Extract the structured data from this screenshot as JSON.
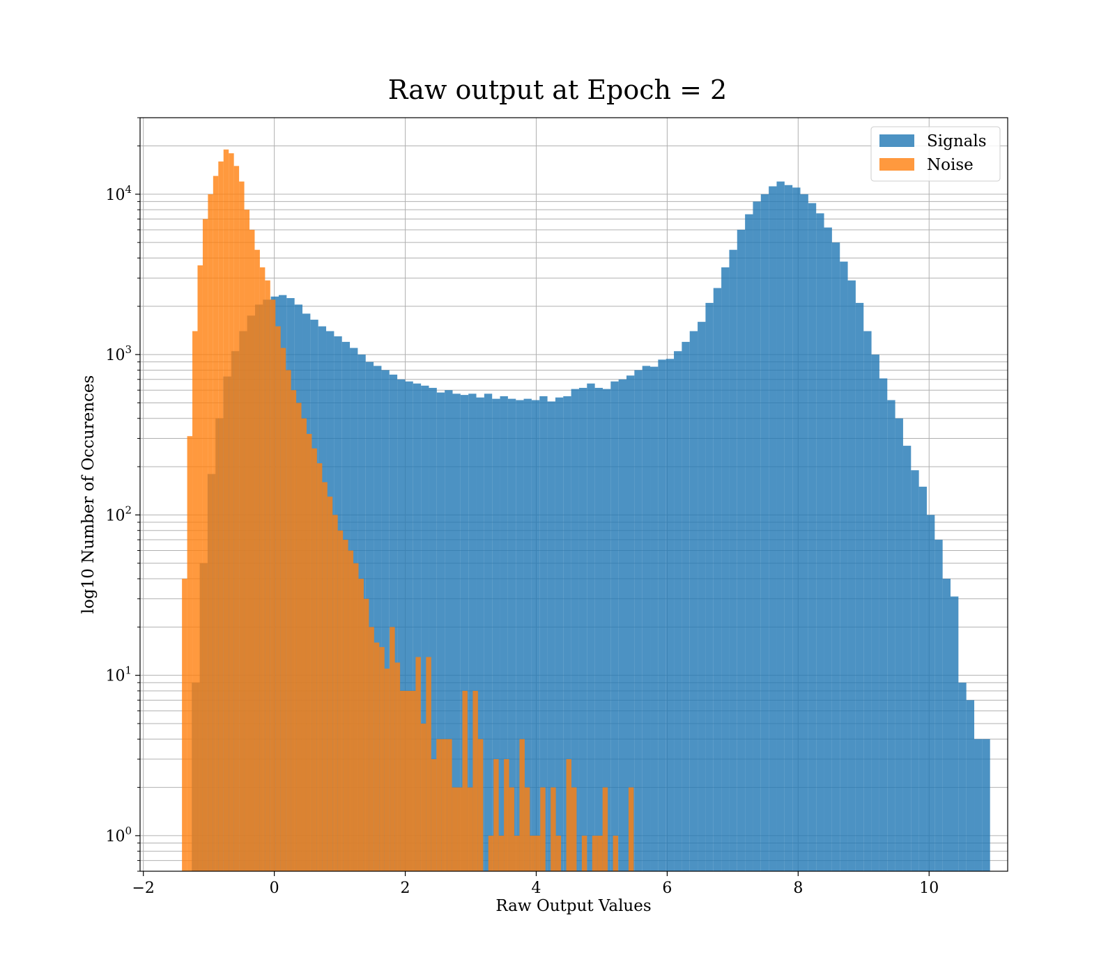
{
  "chart_data": {
    "type": "histogram",
    "title": "Raw output at Epoch = 2",
    "xlabel": "Raw Output Values",
    "ylabel": "log10 Number of Occurences",
    "yscale": "log",
    "xlim": [
      -2.05,
      11.2
    ],
    "ylim": [
      0.6,
      30000
    ],
    "xticks": [
      -2,
      0,
      2,
      4,
      6,
      8,
      10
    ],
    "xtick_labels": [
      "−2",
      "0",
      "2",
      "4",
      "6",
      "8",
      "10"
    ],
    "yticks": [
      {
        "value": 1,
        "base": "10",
        "exp": "0"
      },
      {
        "value": 10,
        "base": "10",
        "exp": "1"
      },
      {
        "value": 100,
        "base": "10",
        "exp": "2"
      },
      {
        "value": 1000,
        "base": "10",
        "exp": "3"
      },
      {
        "value": 10000,
        "base": "10",
        "exp": "4"
      }
    ],
    "grid": true,
    "legend_position": "upper right",
    "series": [
      {
        "name": "Signals",
        "color": "#1f77b4",
        "alpha": 0.8,
        "bin_start": -1.26,
        "bin_width": 0.1207,
        "counts": [
          9,
          50,
          180,
          400,
          730,
          1050,
          1400,
          1750,
          2050,
          2200,
          2300,
          2350,
          2250,
          2050,
          1800,
          1650,
          1500,
          1400,
          1300,
          1200,
          1100,
          1000,
          900,
          850,
          800,
          750,
          700,
          680,
          660,
          640,
          620,
          580,
          600,
          570,
          560,
          570,
          540,
          570,
          530,
          550,
          530,
          520,
          530,
          520,
          550,
          510,
          540,
          550,
          610,
          620,
          660,
          620,
          610,
          680,
          700,
          740,
          800,
          850,
          840,
          930,
          940,
          1050,
          1200,
          1400,
          1600,
          2100,
          2600,
          3500,
          4500,
          6000,
          7500,
          9000,
          10000,
          11200,
          12000,
          11400,
          11000,
          10000,
          8800,
          7600,
          6200,
          5000,
          3800,
          2900,
          2100,
          1400,
          1000,
          710,
          520,
          400,
          270,
          190,
          150,
          100,
          70,
          40,
          31,
          9,
          7,
          4,
          4
        ]
      },
      {
        "name": "Noise",
        "color": "#ff7f0e",
        "alpha": 0.8,
        "bin_start": -1.41,
        "bin_width": 0.0793,
        "counts": [
          40,
          310,
          1400,
          3600,
          7000,
          10000,
          13000,
          16000,
          19000,
          18000,
          15000,
          12000,
          8000,
          6000,
          4500,
          3500,
          2900,
          2200,
          1500,
          1100,
          800,
          600,
          500,
          400,
          320,
          260,
          210,
          160,
          130,
          100,
          80,
          70,
          60,
          50,
          40,
          30,
          20,
          16,
          15,
          11,
          20,
          12,
          8,
          8,
          8,
          13,
          5,
          13,
          3,
          4,
          4,
          4,
          2,
          2,
          8,
          2,
          8,
          4,
          0,
          1,
          3,
          1,
          3,
          2,
          1,
          4,
          2,
          1,
          1,
          2,
          0,
          2,
          1,
          0,
          3,
          2,
          0,
          1,
          0,
          1,
          1,
          2,
          0,
          1,
          0,
          0,
          2
        ]
      }
    ]
  }
}
